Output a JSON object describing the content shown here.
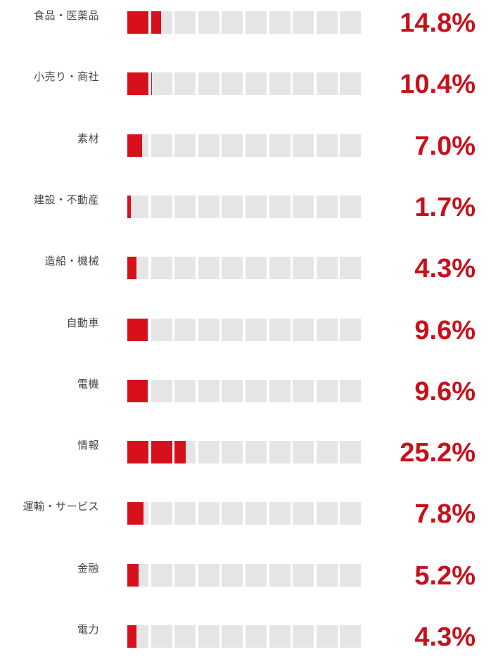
{
  "chart_data": {
    "type": "bar",
    "categories": [
      "食品・医薬品",
      "小売り・商社",
      "素材",
      "建設・不動産",
      "造船・機械",
      "自動車",
      "電機",
      "情報",
      "運輸・サービス",
      "金融",
      "電力"
    ],
    "values": [
      14.8,
      10.4,
      7.0,
      1.7,
      4.3,
      9.6,
      9.6,
      25.2,
      7.8,
      5.2,
      4.3
    ],
    "labels": [
      "14.8%",
      "10.4%",
      "7.0%",
      "1.7%",
      "4.3%",
      "9.6%",
      "9.6%",
      "25.2%",
      "7.8%",
      "5.2%",
      "4.3%"
    ],
    "units_per_cell": 10,
    "cell_count": 10,
    "xlim": [
      0,
      100
    ],
    "grid": false,
    "colors": {
      "fill": "#d7101c",
      "empty": "#e5e5e5",
      "value_text": "#c8101c",
      "label_text": "#444444"
    }
  }
}
